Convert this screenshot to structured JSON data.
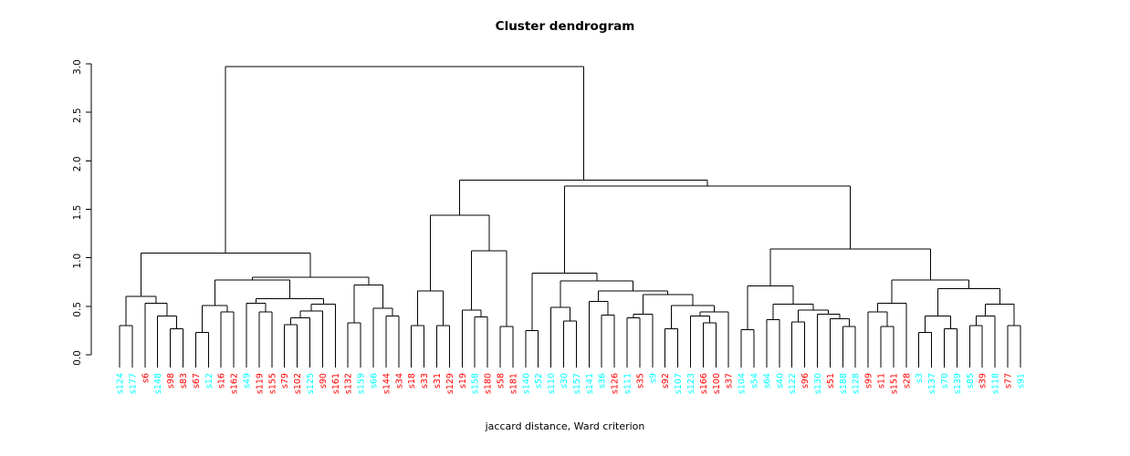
{
  "title": "Cluster dendrogram",
  "subtitle": "jaccard distance, Ward criterion",
  "palette": {
    "red": "#FF0000",
    "cyan": "#00FFFF",
    "line": "#000000"
  },
  "chart_data": {
    "type": "dendrogram",
    "title": "Cluster dendrogram",
    "xlabel": "jaccard distance, Ward criterion",
    "ylabel": "",
    "ylim": [
      0.0,
      3.0
    ],
    "y_ticks": [
      "0.0",
      "0.5",
      "1.0",
      "1.5",
      "2.0",
      "2.5",
      "3.0"
    ],
    "grid": false,
    "leaf_count": 72,
    "leaves": [
      {
        "label": "s124",
        "color": "cyan"
      },
      {
        "label": "s177",
        "color": "cyan"
      },
      {
        "label": "s6",
        "color": "red"
      },
      {
        "label": "s148",
        "color": "cyan"
      },
      {
        "label": "s98",
        "color": "red"
      },
      {
        "label": "s83",
        "color": "red"
      },
      {
        "label": "s67",
        "color": "red"
      },
      {
        "label": "s12",
        "color": "cyan"
      },
      {
        "label": "s16",
        "color": "red"
      },
      {
        "label": "s162",
        "color": "red"
      },
      {
        "label": "s49",
        "color": "cyan"
      },
      {
        "label": "s119",
        "color": "red"
      },
      {
        "label": "s155",
        "color": "red"
      },
      {
        "label": "s79",
        "color": "red"
      },
      {
        "label": "s102",
        "color": "red"
      },
      {
        "label": "s125",
        "color": "cyan"
      },
      {
        "label": "s90",
        "color": "red"
      },
      {
        "label": "s161",
        "color": "red"
      },
      {
        "label": "s132",
        "color": "red"
      },
      {
        "label": "s159",
        "color": "cyan"
      },
      {
        "label": "s66",
        "color": "cyan"
      },
      {
        "label": "s144",
        "color": "red"
      },
      {
        "label": "s34",
        "color": "red"
      },
      {
        "label": "s18",
        "color": "red"
      },
      {
        "label": "s33",
        "color": "red"
      },
      {
        "label": "s31",
        "color": "red"
      },
      {
        "label": "s129",
        "color": "red"
      },
      {
        "label": "s19",
        "color": "red"
      },
      {
        "label": "s158",
        "color": "cyan"
      },
      {
        "label": "s180",
        "color": "red"
      },
      {
        "label": "s58",
        "color": "red"
      },
      {
        "label": "s181",
        "color": "red"
      },
      {
        "label": "s140",
        "color": "cyan"
      },
      {
        "label": "s52",
        "color": "cyan"
      },
      {
        "label": "s110",
        "color": "cyan"
      },
      {
        "label": "s30",
        "color": "cyan"
      },
      {
        "label": "s157",
        "color": "cyan"
      },
      {
        "label": "s141",
        "color": "cyan"
      },
      {
        "label": "s36",
        "color": "cyan"
      },
      {
        "label": "s126",
        "color": "red"
      },
      {
        "label": "s111",
        "color": "cyan"
      },
      {
        "label": "s35",
        "color": "red"
      },
      {
        "label": "s9",
        "color": "cyan"
      },
      {
        "label": "s92",
        "color": "red"
      },
      {
        "label": "s107",
        "color": "cyan"
      },
      {
        "label": "s123",
        "color": "cyan"
      },
      {
        "label": "s166",
        "color": "red"
      },
      {
        "label": "s100",
        "color": "red"
      },
      {
        "label": "s37",
        "color": "red"
      },
      {
        "label": "s104",
        "color": "cyan"
      },
      {
        "label": "s54",
        "color": "cyan"
      },
      {
        "label": "s64",
        "color": "cyan"
      },
      {
        "label": "s40",
        "color": "cyan"
      },
      {
        "label": "s122",
        "color": "cyan"
      },
      {
        "label": "s96",
        "color": "red"
      },
      {
        "label": "s130",
        "color": "cyan"
      },
      {
        "label": "s51",
        "color": "red"
      },
      {
        "label": "s188",
        "color": "cyan"
      },
      {
        "label": "s128",
        "color": "cyan"
      },
      {
        "label": "s99",
        "color": "red"
      },
      {
        "label": "s11",
        "color": "red"
      },
      {
        "label": "s151",
        "color": "red"
      },
      {
        "label": "s28",
        "color": "red"
      },
      {
        "label": "s3",
        "color": "cyan"
      },
      {
        "label": "s137",
        "color": "cyan"
      },
      {
        "label": "s70",
        "color": "cyan"
      },
      {
        "label": "s139",
        "color": "cyan"
      },
      {
        "label": "s85",
        "color": "cyan"
      },
      {
        "label": "s39",
        "color": "red"
      },
      {
        "label": "s118",
        "color": "cyan"
      },
      {
        "label": "s77",
        "color": "red"
      },
      {
        "label": "s91",
        "color": "cyan"
      }
    ],
    "tree": [
      2.97,
      [
        1.05,
        [
          0.6,
          [
            0.3,
            "s124",
            "s177"
          ],
          [
            0.53,
            "s6",
            [
              0.4,
              "s148",
              [
                0.27,
                "s98",
                "s83"
              ]
            ]
          ]
        ],
        [
          0.8,
          [
            0.77,
            [
              0.51,
              [
                0.23,
                "s67",
                "s12"
              ],
              [
                0.44,
                "s16",
                "s162"
              ]
            ],
            [
              0.58,
              [
                0.53,
                "s49",
                [
                  0.44,
                  "s119",
                  "s155"
                ]
              ],
              [
                0.52,
                [
                  0.45,
                  [
                    0.38,
                    [
                      0.31,
                      "s79",
                      "s102"
                    ],
                    "s125"
                  ],
                  "s90"
                ],
                "s161"
              ]
            ]
          ],
          [
            0.72,
            [
              0.33,
              "s132",
              "s159"
            ],
            [
              0.48,
              "s66",
              [
                0.4,
                "s144",
                "s34"
              ]
            ]
          ]
        ]
      ],
      [
        1.8,
        [
          1.44,
          [
            0.66,
            [
              0.3,
              "s18",
              "s33"
            ],
            [
              0.3,
              "s31",
              "s129"
            ]
          ],
          [
            1.07,
            [
              0.46,
              "s19",
              [
                0.39,
                "s158",
                "s180"
              ]
            ],
            [
              0.29,
              "s58",
              "s181"
            ]
          ]
        ],
        [
          1.74,
          [
            0.84,
            [
              0.25,
              "s140",
              "s52"
            ],
            [
              0.76,
              [
                0.49,
                "s110",
                [
                  0.35,
                  "s30",
                  "s157"
                ]
              ],
              [
                0.66,
                [
                  0.55,
                  "s141",
                  [
                    0.41,
                    "s36",
                    "s126"
                  ]
                ],
                [
                  0.62,
                  [
                    0.42,
                    [
                      0.38,
                      "s111",
                      "s35"
                    ],
                    "s9"
                  ],
                  [
                    0.51,
                    [
                      0.27,
                      "s92",
                      "s107"
                    ],
                    [
                      0.44,
                      [
                        0.4,
                        "s123",
                        [
                          0.33,
                          "s166",
                          "s100"
                        ]
                      ],
                      "s37"
                    ]
                  ]
                ]
              ]
            ]
          ],
          [
            1.09,
            [
              0.71,
              [
                0.26,
                "s104",
                "s54"
              ],
              [
                0.52,
                [
                  0.36,
                  "s64",
                  "s40"
                ],
                [
                  0.46,
                  [
                    0.34,
                    "s122",
                    "s96"
                  ],
                  [
                    0.42,
                    "s130",
                    [
                      0.37,
                      "s51",
                      [
                        0.29,
                        "s188",
                        "s128"
                      ]
                    ]
                  ]
                ]
              ]
            ],
            [
              0.77,
              [
                0.53,
                [
                  0.44,
                  "s99",
                  [
                    0.29,
                    "s11",
                    "s151"
                  ]
                ],
                "s28"
              ],
              [
                0.68,
                [
                  0.4,
                  [
                    0.23,
                    "s3",
                    "s137"
                  ],
                  [
                    0.27,
                    "s70",
                    "s139"
                  ]
                ],
                [
                  0.52,
                  [
                    0.4,
                    [
                      0.3,
                      "s85",
                      "s39"
                    ],
                    "s118"
                  ],
                  [
                    0.3,
                    "s77",
                    "s91"
                  ]
                ]
              ]
            ]
          ]
        ]
      ]
    ]
  }
}
